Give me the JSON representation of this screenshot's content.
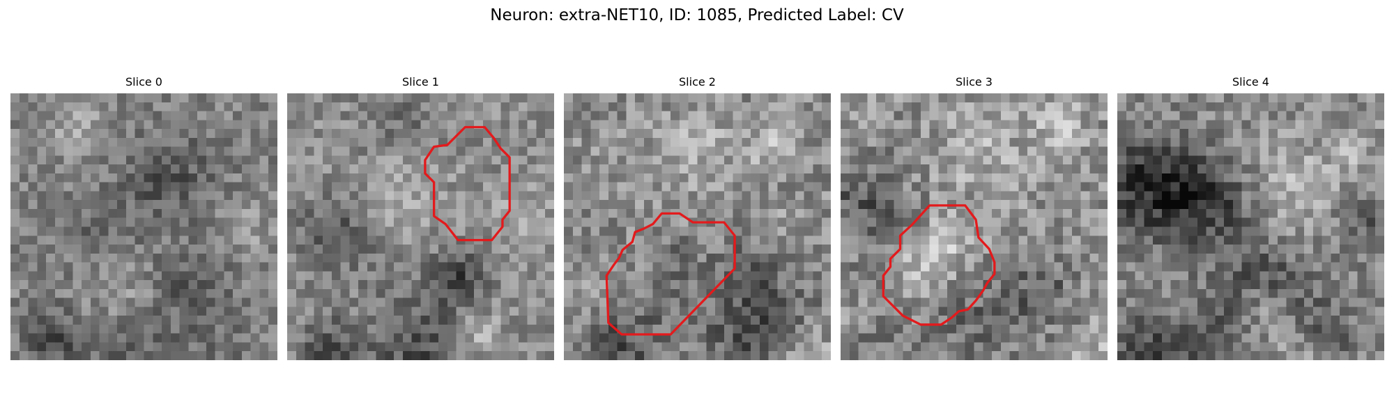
{
  "figure": {
    "title": "Neuron: extra-NET10, ID: 1085, Predicted Label: CV"
  },
  "panels": [
    {
      "title": "Slice 0",
      "has_contour": false
    },
    {
      "title": "Slice 1",
      "has_contour": true
    },
    {
      "title": "Slice 2",
      "has_contour": true
    },
    {
      "title": "Slice 3",
      "has_contour": true
    },
    {
      "title": "Slice 4",
      "has_contour": false
    }
  ],
  "style": {
    "contour_color": "#e31a1c",
    "colormap": "grayscale"
  }
}
